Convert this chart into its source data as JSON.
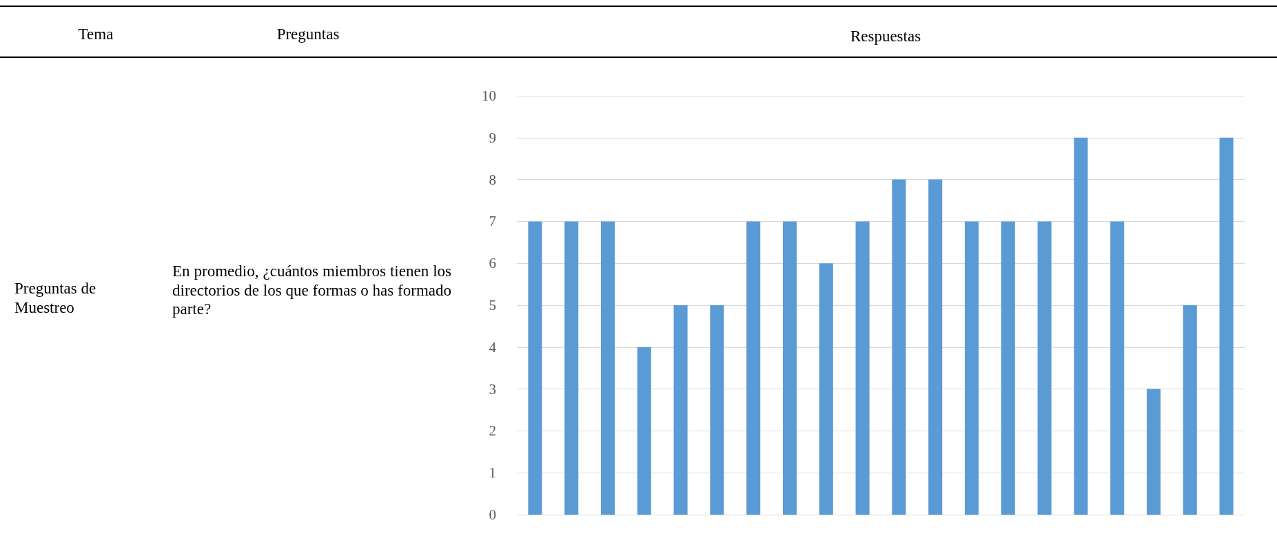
{
  "chart_data": {
    "type": "bar",
    "title": "Respuestas",
    "annotations": [
      "Tema",
      "Preguntas",
      "Preguntas de Muestreo",
      "En promedio, ¿cuántos miembros tienen los directorios de los que formas o has formado parte?"
    ],
    "categories": [
      null,
      null,
      null,
      null,
      null,
      null,
      null,
      null,
      null,
      null,
      null,
      null,
      null,
      null,
      null,
      null,
      null,
      null,
      null,
      null
    ],
    "values": [
      7,
      7,
      7,
      4,
      5,
      5,
      7,
      7,
      6,
      7,
      8,
      8,
      7,
      7,
      7,
      9,
      7,
      3,
      5,
      9
    ],
    "color": "#5b9bd5",
    "ylim": [
      0,
      10
    ],
    "yticks": [
      0,
      1,
      2,
      3,
      4,
      5,
      6,
      7,
      8,
      9,
      10
    ],
    "grid": "y"
  }
}
